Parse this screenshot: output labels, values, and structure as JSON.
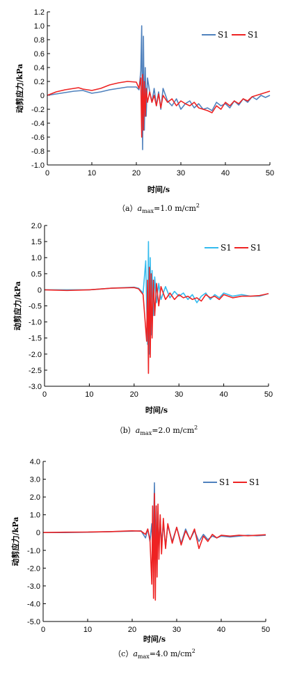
{
  "chart_data": [
    {
      "type": "line",
      "caption": {
        "prefix": "（a）",
        "var": "a",
        "sub": "max",
        "value": "=1.0 m/cm",
        "sup": "2"
      },
      "xlabel": "时间/s",
      "ylabel": "动剪应力/kPa",
      "xlim": [
        0,
        50
      ],
      "ylim": [
        -1.0,
        1.2
      ],
      "xticks": [
        "0",
        "10",
        "20",
        "30",
        "40",
        "50"
      ],
      "yticks": [
        "-1.0",
        "-0.8",
        "-0.6",
        "-0.4",
        "-0.2",
        "0",
        "0.2",
        "0.4",
        "0.6",
        "0.8",
        "1.0",
        "1.2"
      ],
      "legend_position": "top-right",
      "series": [
        {
          "name": "S1",
          "color": "#4f81bd",
          "x": [
            0,
            2,
            4,
            6,
            8,
            9,
            10,
            12,
            14,
            16,
            18,
            20,
            20.6,
            21.0,
            21.2,
            21.4,
            21.6,
            21.8,
            22.0,
            22.2,
            22.5,
            23,
            23.5,
            24,
            24.5,
            25,
            25.5,
            26,
            27,
            28,
            29,
            30,
            31,
            32,
            33,
            34,
            35,
            36,
            37,
            38,
            39,
            40,
            41,
            42,
            43,
            44,
            45,
            46,
            47,
            48,
            49,
            50
          ],
          "y": [
            0,
            0.02,
            0.04,
            0.06,
            0.07,
            0.05,
            0.03,
            0.05,
            0.08,
            0.1,
            0.12,
            0.12,
            0.08,
            0.35,
            1.0,
            -0.78,
            0.85,
            -0.5,
            0.4,
            -0.3,
            0.25,
            0.05,
            -0.1,
            0.1,
            -0.15,
            0.05,
            -0.2,
            0.1,
            -0.08,
            -0.15,
            -0.05,
            -0.2,
            -0.12,
            -0.08,
            -0.18,
            -0.12,
            -0.2,
            -0.18,
            -0.22,
            -0.1,
            -0.15,
            -0.12,
            -0.18,
            -0.08,
            -0.14,
            -0.05,
            -0.1,
            -0.02,
            -0.06,
            0.0,
            -0.03,
            0.0
          ]
        },
        {
          "name": "S1",
          "color": "#ee2222",
          "x": [
            0,
            2,
            4,
            6,
            7,
            8,
            9,
            10,
            12,
            14,
            16,
            18,
            20,
            20.6,
            21.0,
            21.2,
            21.4,
            21.6,
            21.8,
            22.0,
            22.2,
            22.5,
            23,
            23.5,
            24,
            24.5,
            25,
            25.5,
            26,
            27,
            28,
            29,
            30,
            31,
            32,
            33,
            34,
            35,
            36,
            37,
            38,
            39,
            40,
            41,
            42,
            43,
            44,
            45,
            46,
            47,
            48,
            49,
            50
          ],
          "y": [
            0,
            0.05,
            0.08,
            0.1,
            0.11,
            0.09,
            0.08,
            0.07,
            0.1,
            0.15,
            0.18,
            0.2,
            0.19,
            0.1,
            0.25,
            -0.6,
            0.3,
            -0.5,
            0.2,
            -0.3,
            0.1,
            -0.1,
            0.05,
            -0.1,
            0.0,
            -0.15,
            0.02,
            -0.18,
            0.0,
            -0.1,
            -0.05,
            -0.15,
            -0.08,
            -0.12,
            -0.15,
            -0.1,
            -0.18,
            -0.2,
            -0.22,
            -0.25,
            -0.15,
            -0.2,
            -0.1,
            -0.15,
            -0.08,
            -0.12,
            -0.05,
            -0.08,
            -0.02,
            0.0,
            0.02,
            0.04,
            0.06
          ]
        }
      ]
    },
    {
      "type": "line",
      "caption": {
        "prefix": "（b）",
        "var": "a",
        "sub": "max",
        "value": "=2.0 m/cm",
        "sup": "2"
      },
      "xlabel": "时间/s",
      "ylabel": "动剪应力/kPa",
      "xlim": [
        0,
        50
      ],
      "ylim": [
        -3.0,
        2.0
      ],
      "xticks": [
        "0",
        "10",
        "20",
        "30",
        "40",
        "50"
      ],
      "yticks": [
        "-3.0",
        "-2.5",
        "-2.0",
        "-1.5",
        "-1.0",
        "-0.5",
        "0",
        "0.5",
        "1.0",
        "1.5",
        "2.0"
      ],
      "legend_position": "top-right",
      "series": [
        {
          "name": "S1",
          "color": "#33bbee",
          "x": [
            0,
            5,
            10,
            15,
            20,
            21,
            22,
            22.6,
            23.0,
            23.2,
            23.4,
            23.6,
            23.8,
            24.0,
            24.3,
            24.6,
            25,
            25.5,
            26,
            27,
            28,
            29,
            30,
            31,
            32,
            33,
            34,
            35,
            36,
            37,
            38,
            39,
            40,
            42,
            44,
            46,
            48,
            50
          ],
          "y": [
            0,
            0.0,
            0.0,
            0.05,
            0.08,
            0.05,
            -0.1,
            0.9,
            -1.7,
            1.5,
            -2.0,
            1.0,
            -1.4,
            0.6,
            -0.8,
            0.4,
            -0.4,
            0.2,
            -0.3,
            0.1,
            -0.25,
            -0.05,
            -0.2,
            -0.1,
            -0.3,
            -0.15,
            -0.4,
            -0.2,
            -0.1,
            -0.3,
            -0.15,
            -0.25,
            -0.1,
            -0.2,
            -0.15,
            -0.2,
            -0.2,
            -0.12
          ]
        },
        {
          "name": "S1",
          "color": "#ee2222",
          "x": [
            0,
            5,
            10,
            15,
            20,
            21,
            22,
            22.8,
            23.0,
            23.2,
            23.4,
            23.6,
            23.8,
            24.0,
            24.3,
            24.6,
            25,
            25.5,
            26,
            27,
            28,
            29,
            30,
            31,
            32,
            33,
            34,
            35,
            36,
            37,
            38,
            39,
            40,
            42,
            44,
            46,
            48,
            50
          ],
          "y": [
            0,
            -0.02,
            0.0,
            0.05,
            0.07,
            0.03,
            -0.15,
            -1.6,
            0.3,
            -2.6,
            0.7,
            -2.1,
            0.5,
            -1.5,
            0.3,
            -0.8,
            0.2,
            -0.5,
            0.1,
            -0.3,
            -0.1,
            -0.3,
            -0.15,
            -0.25,
            -0.2,
            -0.3,
            -0.25,
            -0.35,
            -0.15,
            -0.25,
            -0.2,
            -0.3,
            -0.15,
            -0.25,
            -0.2,
            -0.2,
            -0.18,
            -0.12
          ]
        }
      ]
    },
    {
      "type": "line",
      "caption": {
        "prefix": "（c）",
        "var": "a",
        "sub": "max",
        "value": "=4.0 m/cm",
        "sup": "2"
      },
      "xlabel": "时间/s",
      "ylabel": "动剪应力/kPa",
      "xlim": [
        0,
        50
      ],
      "ylim": [
        -5.0,
        4.0
      ],
      "xticks": [
        "0",
        "10",
        "20",
        "30",
        "40",
        "50"
      ],
      "yticks": [
        "-5.0",
        "-4.0",
        "-3.0",
        "-2.0",
        "-1.0",
        "0",
        "1.0",
        "2.0",
        "3.0",
        "4.0"
      ],
      "legend_position": "top-right",
      "series": [
        {
          "name": "S1",
          "color": "#4f81bd",
          "x": [
            0,
            5,
            10,
            15,
            20,
            22,
            23,
            23.5,
            24,
            24.4,
            24.7,
            25.0,
            25.2,
            25.4,
            25.6,
            25.8,
            26.0,
            26.3,
            26.6,
            27,
            27.5,
            28,
            29,
            30,
            31,
            32,
            33,
            34,
            35,
            36,
            37,
            38,
            39,
            40,
            42,
            44,
            46,
            48,
            50
          ],
          "y": [
            0,
            0.0,
            0.02,
            0.05,
            0.08,
            0.1,
            -0.3,
            0.2,
            -0.5,
            0.5,
            -1.2,
            2.8,
            -1.5,
            1.5,
            -1.8,
            1.2,
            -1.0,
            0.8,
            -0.6,
            0.5,
            -0.8,
            0.4,
            -0.5,
            0.3,
            -0.6,
            0.2,
            -0.4,
            0.1,
            -0.5,
            -0.1,
            -0.4,
            -0.2,
            -0.3,
            -0.2,
            -0.25,
            -0.2,
            -0.15,
            -0.18,
            -0.15
          ]
        },
        {
          "name": "S1",
          "color": "#ee2222",
          "x": [
            0,
            5,
            10,
            15,
            20,
            22,
            23,
            23.5,
            24,
            24.4,
            24.6,
            24.8,
            25.0,
            25.2,
            25.4,
            25.6,
            25.8,
            26.0,
            26.3,
            26.6,
            27,
            27.5,
            28,
            29,
            30,
            31,
            32,
            33,
            34,
            35,
            36,
            37,
            38,
            39,
            40,
            42,
            44,
            46,
            48,
            50
          ],
          "y": [
            0,
            0.02,
            0.03,
            0.05,
            0.1,
            0.08,
            -0.1,
            0.2,
            -0.4,
            -2.9,
            1.5,
            -3.7,
            2.2,
            -3.8,
            1.5,
            -2.5,
            1.6,
            -1.5,
            1.0,
            -1.2,
            0.8,
            -0.9,
            0.5,
            -0.6,
            0.3,
            -0.7,
            0.1,
            -0.4,
            0.2,
            -0.9,
            -0.2,
            -0.5,
            -0.1,
            -0.3,
            -0.15,
            -0.2,
            -0.15,
            -0.18,
            -0.15,
            -0.12
          ]
        }
      ]
    }
  ]
}
